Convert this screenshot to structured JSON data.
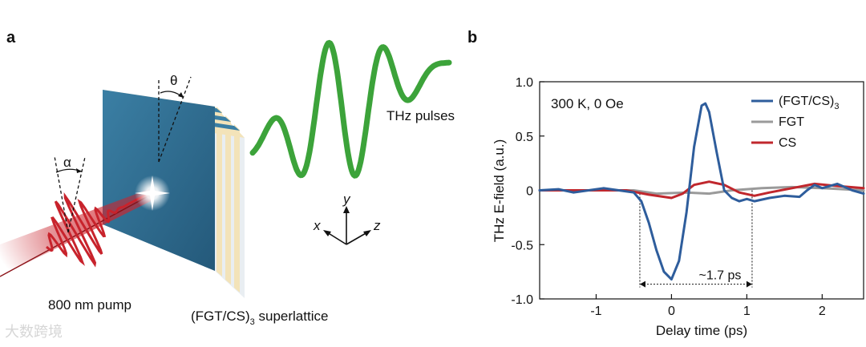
{
  "panel_a": {
    "label": "a",
    "theta": "θ",
    "alpha": "α",
    "thz_label": "THz pulses",
    "pump_label": "800 nm pump",
    "superlattice_label_main": "(FGT/CS)",
    "superlattice_label_sub": "3",
    "superlattice_label_tail": " superlattice",
    "axes": {
      "x": "x",
      "y": "y",
      "z": "z"
    },
    "colors": {
      "beam": "#c8232c",
      "thz": "#3ca33a",
      "slab": "#2f6a8a",
      "layer": "#f3e3b9"
    }
  },
  "panel_b": {
    "label": "b",
    "condition": "300 K, 0 Oe",
    "span_label": "~1.7 ps"
  },
  "chart_data": {
    "type": "line",
    "title": "",
    "xlabel": "Delay time (ps)",
    "ylabel": "THz E-field (a.u.)",
    "xlim": [
      -1.75,
      2.55
    ],
    "ylim": [
      -1.0,
      1.0
    ],
    "xticks": [
      -1,
      0,
      1,
      2
    ],
    "yticks": [
      -1.0,
      -0.5,
      0,
      0.5,
      1.0
    ],
    "xtick_labels": [
      "-1",
      "0",
      "1",
      "2"
    ],
    "ytick_labels": [
      "-1.0",
      "-0.5",
      "0",
      "0.5",
      "1.0"
    ],
    "series": [
      {
        "name": "(FGT/CS)",
        "name_sub": "3",
        "color": "#2e5d9c",
        "x": [
          -1.75,
          -1.5,
          -1.3,
          -1.1,
          -0.9,
          -0.7,
          -0.5,
          -0.4,
          -0.3,
          -0.2,
          -0.1,
          0.0,
          0.1,
          0.2,
          0.3,
          0.4,
          0.45,
          0.5,
          0.6,
          0.7,
          0.8,
          0.9,
          1.0,
          1.1,
          1.3,
          1.5,
          1.7,
          1.8,
          1.9,
          2.0,
          2.2,
          2.4,
          2.55
        ],
        "y": [
          0.0,
          0.01,
          -0.02,
          0.0,
          0.02,
          0.0,
          -0.02,
          -0.1,
          -0.3,
          -0.55,
          -0.75,
          -0.82,
          -0.65,
          -0.2,
          0.4,
          0.78,
          0.8,
          0.72,
          0.35,
          0.0,
          -0.07,
          -0.1,
          -0.08,
          -0.1,
          -0.07,
          -0.05,
          -0.06,
          0.0,
          0.05,
          0.02,
          0.06,
          0.0,
          -0.03
        ]
      },
      {
        "name": "FGT",
        "color": "#9a9a9a",
        "x": [
          -1.75,
          -1.0,
          -0.5,
          -0.2,
          0.2,
          0.5,
          0.8,
          1.2,
          1.6,
          2.0,
          2.55
        ],
        "y": [
          0.0,
          0.0,
          0.0,
          -0.03,
          -0.02,
          -0.03,
          0.0,
          0.02,
          0.03,
          0.02,
          0.0
        ]
      },
      {
        "name": "CS",
        "color": "#c0272d",
        "x": [
          -1.75,
          -1.2,
          -0.6,
          -0.3,
          0.0,
          0.15,
          0.3,
          0.5,
          0.7,
          0.9,
          1.1,
          1.3,
          1.6,
          1.9,
          2.2,
          2.55
        ],
        "y": [
          0.0,
          0.0,
          0.0,
          -0.04,
          -0.07,
          -0.03,
          0.05,
          0.08,
          0.05,
          -0.02,
          -0.05,
          -0.02,
          0.02,
          0.06,
          0.04,
          0.02
        ]
      }
    ],
    "annotation": {
      "text": "~1.7 ps",
      "x_start": -0.42,
      "x_end": 1.07,
      "y": -0.85
    },
    "legend_position": "top-right"
  },
  "watermark": "大数跨境"
}
